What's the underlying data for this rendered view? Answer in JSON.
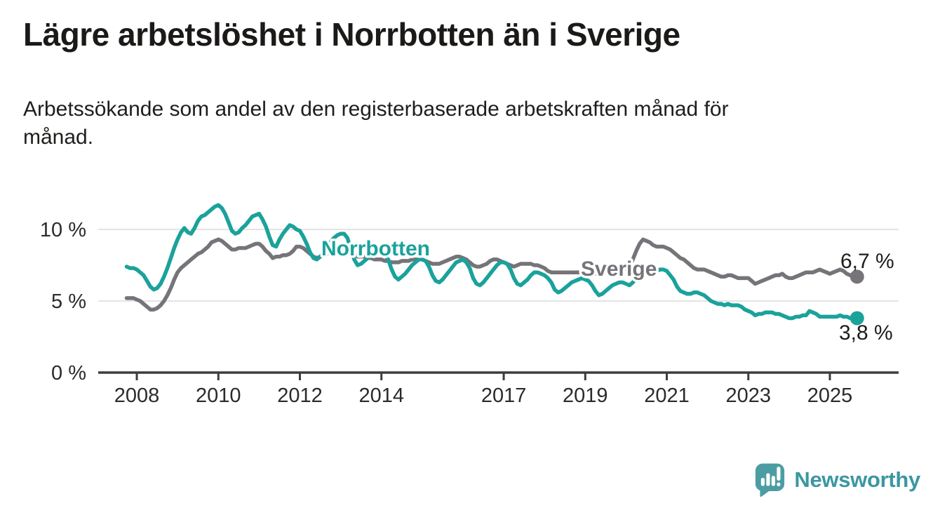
{
  "header": {
    "title": "Lägre arbetslöshet i Norrbotten än i Sverige",
    "subtitle_line1": "Arbetssökande som andel av den registerbaserade arbetskraften månad för",
    "subtitle_line2": "månad."
  },
  "footer": {
    "logo_text": "Newsworthy"
  },
  "colors": {
    "teal": "#1aa29b",
    "grey": "#767379",
    "text_dark": "#1d1d1b",
    "axis_text": "#2b2b2b",
    "grid": "#e4e4e4",
    "axis_line": "#3d3d3d",
    "logo_icon": "#4c9da3",
    "logo_text": "#3b97a1"
  },
  "chart_data": {
    "type": "line",
    "title": "Lägre arbetslöshet i Norrbotten än i Sverige",
    "subtitle": "Arbetssökande som andel av den registerbaserade arbetskraften månad för månad.",
    "unit": "%",
    "frequency": "monthly",
    "x_start": "2007-10",
    "x_end": "2025-09",
    "ylim": [
      0,
      12
    ],
    "grid": "horizontal",
    "legend_position": "inline-labels",
    "yticks": [
      {
        "value": 0,
        "label": "0 %"
      },
      {
        "value": 5,
        "label": "5 %"
      },
      {
        "value": 10,
        "label": "10 %"
      }
    ],
    "xticks": [
      2008,
      2010,
      2012,
      2014,
      2017,
      2019,
      2021,
      2023,
      2025
    ],
    "series": [
      {
        "name": "Sverige",
        "color": "#767379",
        "end_value": 6.7,
        "end_label": "6,7 %",
        "values": [
          5.2,
          5.2,
          5.2,
          5.1,
          5.0,
          4.8,
          4.6,
          4.4,
          4.4,
          4.5,
          4.7,
          5.0,
          5.4,
          5.9,
          6.5,
          7.0,
          7.3,
          7.5,
          7.7,
          7.9,
          8.1,
          8.3,
          8.4,
          8.6,
          8.8,
          9.1,
          9.2,
          9.3,
          9.2,
          9.0,
          8.8,
          8.6,
          8.6,
          8.7,
          8.7,
          8.7,
          8.8,
          8.9,
          9.0,
          9.0,
          8.8,
          8.5,
          8.3,
          8.0,
          8.1,
          8.1,
          8.2,
          8.2,
          8.3,
          8.5,
          8.8,
          8.8,
          8.7,
          8.5,
          8.3,
          8.1,
          8.0,
          8.1,
          8.2,
          8.3,
          8.4,
          8.5,
          8.6,
          8.8,
          8.7,
          8.6,
          8.4,
          8.2,
          8.1,
          8.1,
          8.1,
          8.0,
          8.0,
          7.9,
          7.9,
          7.9,
          7.8,
          7.8,
          7.7,
          7.7,
          7.7,
          7.8,
          7.8,
          7.8,
          7.9,
          7.9,
          7.9,
          7.9,
          7.8,
          7.7,
          7.6,
          7.6,
          7.6,
          7.7,
          7.8,
          7.9,
          8.0,
          8.1,
          8.1,
          8.0,
          7.9,
          7.7,
          7.5,
          7.4,
          7.4,
          7.5,
          7.6,
          7.8,
          7.9,
          7.9,
          7.8,
          7.7,
          7.6,
          7.5,
          7.4,
          7.5,
          7.6,
          7.6,
          7.6,
          7.6,
          7.5,
          7.5,
          7.4,
          7.3,
          7.1,
          7.0,
          7.0,
          7.0,
          7.0,
          7.0,
          7.0,
          7.0,
          7.0,
          7.0,
          7.0,
          7.0,
          7.0,
          6.9,
          6.9,
          6.9,
          7.0,
          7.0,
          7.0,
          7.1,
          7.1,
          7.1,
          7.2,
          7.3,
          7.4,
          7.9,
          8.5,
          9.0,
          9.3,
          9.2,
          9.1,
          8.9,
          8.8,
          8.8,
          8.8,
          8.7,
          8.6,
          8.4,
          8.2,
          8.0,
          7.9,
          7.7,
          7.5,
          7.3,
          7.2,
          7.2,
          7.2,
          7.1,
          7.0,
          6.9,
          6.8,
          6.7,
          6.7,
          6.8,
          6.8,
          6.7,
          6.6,
          6.6,
          6.6,
          6.6,
          6.4,
          6.2,
          6.3,
          6.4,
          6.5,
          6.6,
          6.7,
          6.8,
          6.8,
          6.9,
          6.7,
          6.6,
          6.6,
          6.7,
          6.8,
          6.9,
          7.0,
          7.0,
          7.0,
          7.1,
          7.2,
          7.1,
          7.0,
          6.9,
          7.0,
          7.1,
          7.2,
          7.1,
          6.9,
          6.8,
          6.8,
          6.7
        ]
      },
      {
        "name": "Norrbotten",
        "color": "#1aa29b",
        "end_value": 3.8,
        "end_label": "3,8 %",
        "values": [
          7.4,
          7.3,
          7.3,
          7.2,
          7.0,
          6.8,
          6.4,
          6.0,
          5.8,
          5.9,
          6.2,
          6.7,
          7.3,
          8.0,
          8.7,
          9.3,
          9.8,
          10.1,
          9.8,
          9.7,
          10.1,
          10.6,
          10.9,
          11.0,
          11.2,
          11.4,
          11.6,
          11.7,
          11.5,
          11.1,
          10.5,
          9.9,
          9.7,
          9.8,
          10.1,
          10.3,
          10.6,
          10.9,
          11.0,
          11.1,
          10.7,
          10.2,
          9.5,
          8.9,
          8.8,
          9.3,
          9.7,
          10.0,
          10.3,
          10.2,
          10.0,
          9.9,
          9.5,
          9.0,
          8.4,
          8.0,
          7.9,
          8.1,
          8.4,
          8.8,
          9.1,
          9.4,
          9.6,
          9.7,
          9.7,
          9.4,
          8.6,
          7.9,
          7.5,
          7.6,
          7.8,
          8.0,
          8.2,
          8.3,
          8.3,
          8.3,
          8.2,
          7.9,
          7.2,
          6.7,
          6.5,
          6.7,
          6.9,
          7.2,
          7.5,
          7.7,
          7.9,
          7.9,
          7.8,
          7.4,
          6.8,
          6.4,
          6.3,
          6.5,
          6.8,
          7.1,
          7.4,
          7.7,
          7.8,
          7.9,
          7.7,
          7.3,
          6.6,
          6.2,
          6.1,
          6.3,
          6.6,
          6.9,
          7.2,
          7.5,
          7.7,
          7.7,
          7.6,
          7.2,
          6.6,
          6.2,
          6.1,
          6.3,
          6.5,
          6.8,
          7.0,
          7.0,
          6.9,
          6.8,
          6.6,
          6.3,
          5.8,
          5.6,
          5.7,
          5.9,
          6.1,
          6.3,
          6.4,
          6.5,
          6.6,
          6.5,
          6.4,
          6.1,
          5.7,
          5.4,
          5.5,
          5.7,
          5.9,
          6.1,
          6.2,
          6.3,
          6.3,
          6.2,
          6.1,
          6.3,
          6.6,
          6.9,
          7.0,
          7.1,
          7.1,
          7.0,
          7.1,
          7.2,
          7.2,
          7.1,
          6.8,
          6.5,
          6.0,
          5.7,
          5.6,
          5.5,
          5.5,
          5.6,
          5.6,
          5.5,
          5.4,
          5.2,
          5.0,
          4.9,
          4.8,
          4.8,
          4.7,
          4.8,
          4.7,
          4.7,
          4.7,
          4.6,
          4.4,
          4.3,
          4.2,
          4.0,
          4.1,
          4.1,
          4.2,
          4.2,
          4.2,
          4.1,
          4.1,
          4.0,
          3.9,
          3.8,
          3.8,
          3.9,
          3.9,
          4.0,
          4.0,
          4.3,
          4.2,
          4.1,
          3.9,
          3.9,
          3.9,
          3.9,
          3.9,
          3.9,
          4.0,
          3.9,
          3.9,
          3.8,
          3.8,
          3.8
        ]
      }
    ]
  }
}
